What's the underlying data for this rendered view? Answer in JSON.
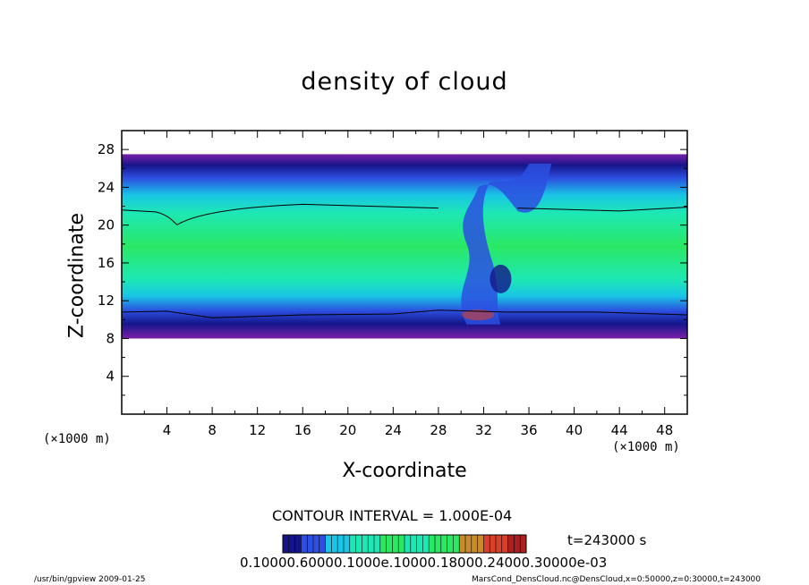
{
  "chart_data": {
    "type": "heatmap",
    "title": "density of cloud",
    "xlabel": "X-coordinate",
    "ylabel": "Z-coordinate",
    "x_unit": "(×1000 m)",
    "y_unit": "(×1000 m)",
    "xlim": [
      0,
      50
    ],
    "ylim": [
      0,
      30
    ],
    "x_ticks": [
      "4",
      "8",
      "12",
      "16",
      "20",
      "24",
      "28",
      "32",
      "36",
      "40",
      "44",
      "48"
    ],
    "y_ticks": [
      "4",
      "8",
      "12",
      "16",
      "20",
      "24",
      "28"
    ],
    "cloud_band_km": [
      8,
      27.5
    ],
    "contour_interval": "CONTOUR INTERVAL = 1.000E-04",
    "colorbar_labels": "0.10000.60000.1000e.10000.18000.24000.30000e-03",
    "time": "t=243000 s",
    "colors": {
      "violet": "#7a1fa8",
      "dark_blue": "#15158a",
      "blue": "#2c4fe0",
      "cyan": "#19c4e6",
      "aqua": "#1de8b4",
      "green": "#2ae864",
      "orange_red": "#d8402a"
    }
  },
  "footer": {
    "left": "/usr/bin/gpview   2009-01-25",
    "right": "MarsCond_DensCloud.nc@DensCloud,x=0:50000,z=0:30000,t=243000"
  }
}
